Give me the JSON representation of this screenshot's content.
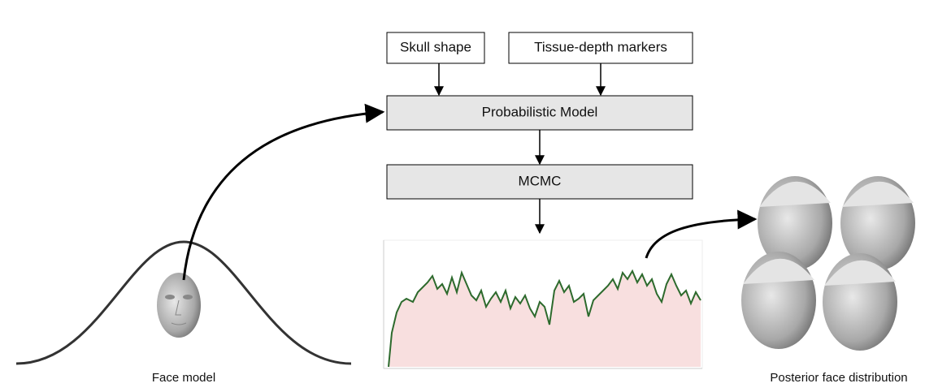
{
  "inputs": {
    "skull": "Skull shape",
    "markers": "Tissue-depth markers"
  },
  "model": "Probabilistic Model",
  "sampler": "MCMC",
  "prior_label": "Face model",
  "posterior_label": "Posterior face distribution"
}
